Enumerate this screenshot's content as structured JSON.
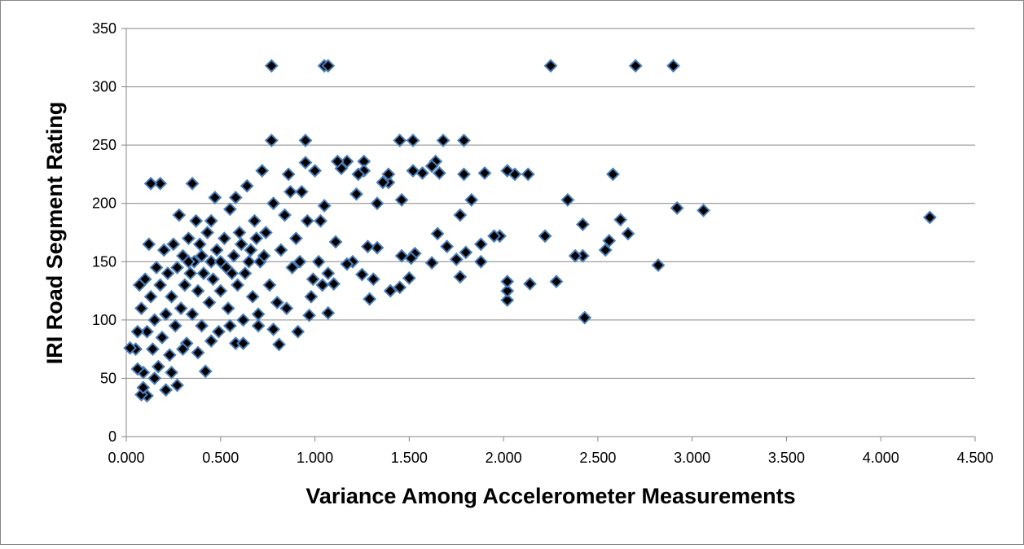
{
  "chart_data": {
    "type": "scatter",
    "x_label": "Variance Among Accelerometer Measurements",
    "y_label": "IRI Road Segment Rating",
    "color": "#000000",
    "edge_color": "#4a7ebb",
    "xlim": [
      0,
      4.5
    ],
    "xticks": [
      {
        "value": 0,
        "label": "0.000"
      },
      {
        "value": 0.5,
        "label": "0.500"
      },
      {
        "value": 1,
        "label": "1.000"
      },
      {
        "value": 1.5,
        "label": "1.500"
      },
      {
        "value": 2,
        "label": "2.000"
      },
      {
        "value": 2.5,
        "label": "2.500"
      },
      {
        "value": 3,
        "label": "3.000"
      },
      {
        "value": 3.5,
        "label": "3.500"
      },
      {
        "value": 4,
        "label": "4.000"
      },
      {
        "value": 4.5,
        "label": "4.500"
      }
    ],
    "ylim": [
      0,
      350
    ],
    "yticks": [
      0,
      50,
      100,
      150,
      200,
      250,
      300,
      350
    ],
    "grid": true,
    "x": [
      0.77,
      1.05,
      1.07,
      2.25,
      2.7,
      2.9,
      0.77,
      0.95,
      1.45,
      1.52,
      1.68,
      1.79,
      4.26,
      3.06,
      2.92,
      2.82,
      2.66,
      2.62,
      2.58,
      2.56,
      2.54,
      2.43,
      2.42,
      2.42,
      2.38,
      2.34,
      2.28,
      2.22,
      2.14,
      2.13,
      2.06,
      2.02,
      2.02,
      2.02,
      2.02,
      1.98,
      1.95,
      1.9,
      1.88,
      1.88,
      1.83,
      1.8,
      1.79,
      1.77,
      1.77,
      1.75,
      1.7,
      1.66,
      1.65,
      1.64,
      1.62,
      1.62,
      1.57,
      1.53,
      1.52,
      1.51,
      1.5,
      1.46,
      1.46,
      1.45,
      1.4,
      1.39,
      1.39,
      1.36,
      1.33,
      1.33,
      1.31,
      1.29,
      1.28,
      1.26,
      1.26,
      1.25,
      1.23,
      1.22,
      1.2,
      1.17,
      1.17,
      1.14,
      1.12,
      1.11,
      1.1,
      1.07,
      1.07,
      1.05,
      1.03,
      1.02,
      1.0,
      0.98,
      0.97,
      0.95,
      0.93,
      0.91,
      0.9,
      0.88,
      0.86,
      0.84,
      0.82,
      0.81,
      0.8,
      0.78,
      0.76,
      0.74,
      0.72,
      0.71,
      0.7,
      0.68,
      0.67,
      0.66,
      0.64,
      0.63,
      0.62,
      0.6,
      0.59,
      0.58,
      0.57,
      0.55,
      0.54,
      0.53,
      0.52,
      0.5,
      0.49,
      0.48,
      0.47,
      0.46,
      0.45,
      0.44,
      0.43,
      0.42,
      0.41,
      0.4,
      0.39,
      0.38,
      0.37,
      0.36,
      0.35,
      0.35,
      0.34,
      0.33,
      0.32,
      0.31,
      0.3,
      0.29,
      0.28,
      0.27,
      0.27,
      0.26,
      0.25,
      0.24,
      0.23,
      0.22,
      0.21,
      0.21,
      0.2,
      0.19,
      0.18,
      0.18,
      0.17,
      0.16,
      0.15,
      0.14,
      0.13,
      0.13,
      0.12,
      0.11,
      0.11,
      0.1,
      0.09,
      0.08,
      0.08,
      0.07,
      0.06,
      0.05,
      0.02,
      0.06,
      0.09,
      0.15,
      0.24,
      0.3,
      0.38,
      0.45,
      0.55,
      0.62,
      0.7,
      0.78,
      0.85,
      0.92,
      0.96,
      0.99,
      1.04,
      0.87,
      0.5,
      0.56,
      0.61,
      0.65,
      0.69,
      0.73,
      0.4,
      0.45,
      0.33,
      0.58
    ],
    "values": [
      318,
      318,
      318,
      318,
      318,
      318,
      254,
      254,
      254,
      254,
      254,
      254,
      188,
      194,
      196,
      147,
      174,
      186,
      225,
      168,
      160,
      102,
      182,
      155,
      155,
      203,
      133,
      172,
      131,
      225,
      225,
      228,
      117,
      125,
      133,
      172,
      172,
      226,
      165,
      150,
      203,
      158,
      225,
      190,
      137,
      152,
      163,
      226,
      174,
      236,
      232,
      149,
      226,
      157,
      228,
      153,
      136,
      203,
      155,
      128,
      125,
      218,
      225,
      218,
      200,
      162,
      135,
      118,
      163,
      236,
      228,
      139,
      225,
      208,
      150,
      236,
      148,
      230,
      236,
      167,
      131,
      106,
      140,
      198,
      185,
      150,
      228,
      120,
      104,
      235,
      210,
      90,
      170,
      145,
      225,
      190,
      160,
      79,
      115,
      200,
      130,
      175,
      228,
      150,
      95,
      185,
      120,
      160,
      215,
      140,
      100,
      175,
      130,
      80,
      155,
      195,
      110,
      145,
      170,
      125,
      90,
      160,
      205,
      135,
      150,
      115,
      175,
      56,
      140,
      95,
      165,
      125,
      185,
      150,
      217,
      105,
      140,
      170,
      80,
      130,
      155,
      110,
      190,
      44,
      145,
      95,
      165,
      120,
      70,
      140,
      40,
      105,
      160,
      85,
      217,
      130,
      60,
      145,
      100,
      75,
      217,
      120,
      165,
      35,
      90,
      135,
      55,
      36,
      110,
      130,
      58,
      75,
      76,
      90,
      42,
      50,
      55,
      75,
      72,
      82,
      95,
      80,
      105,
      92,
      110,
      150,
      185,
      135,
      130,
      210,
      150,
      140,
      165,
      150,
      170,
      155,
      155,
      185,
      150,
      205
    ]
  }
}
